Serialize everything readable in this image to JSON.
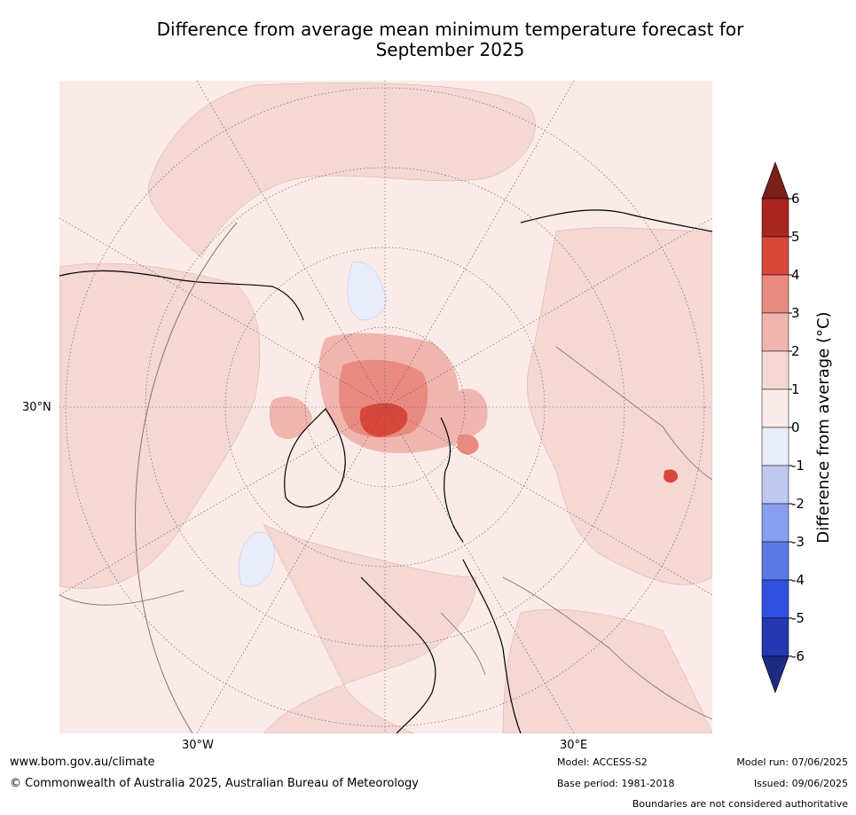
{
  "title_line1": "Difference from average mean minimum temperature forecast for",
  "title_line2": "September 2025",
  "axis_labels": {
    "lat_30n": "30°N",
    "lon_30w": "30°W",
    "lon_30e": "30°E"
  },
  "colorbar": {
    "label": "Difference from average (°C)",
    "ticks": [
      "6",
      "5",
      "4",
      "3",
      "2",
      "1",
      "0",
      "-1",
      "-2",
      "-3",
      "-4",
      "-5",
      "-6"
    ],
    "colors_warm": [
      "#7b1f1a",
      "#a8281f",
      "#d9473a",
      "#e98a80",
      "#f0b5ae",
      "#f5d7d3",
      "#fbebe8"
    ],
    "colors_cool": [
      "#e9edfb",
      "#bfc8f1",
      "#8a9eee",
      "#5c79e6",
      "#2f50de",
      "#2438b0",
      "#1c2a82"
    ]
  },
  "footer": {
    "url": "www.bom.gov.au/climate",
    "copyright": "© Commonwealth of Australia 2025, Australian Bureau of Meteorology",
    "model": "Model: ACCESS-S2",
    "base_period": "Base period: 1981-2018",
    "model_run": "Model run: 07/06/2025",
    "issued": "Issued: 09/06/2025",
    "boundaries_note": "Boundaries are not considered authoritative"
  }
}
